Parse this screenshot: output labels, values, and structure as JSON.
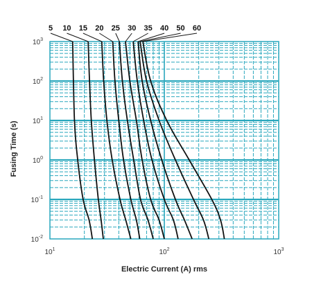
{
  "chart_data": {
    "type": "line",
    "xlabel": "Electric Current (A) rms",
    "ylabel": "Fusing Time (s)",
    "x_scale": "log",
    "y_scale": "log",
    "xlim": [
      10,
      1000
    ],
    "ylim": [
      0.01,
      1000
    ],
    "grid": true,
    "legend": "series labels along top edge with leader lines",
    "colors": {
      "grid": "#29a7bd",
      "curve": "#111111",
      "text": "#333333"
    },
    "x_ticks": [
      {
        "base": "10",
        "exp": "1"
      },
      {
        "base": "10",
        "exp": "2"
      },
      {
        "base": "10",
        "exp": "3"
      }
    ],
    "y_ticks": [
      {
        "base": "10",
        "exp": "3",
        "value": 1000
      },
      {
        "base": "10",
        "exp": "2",
        "value": 100
      },
      {
        "base": "10",
        "exp": "1",
        "value": 10
      },
      {
        "base": "10",
        "exp": "0",
        "value": 1
      },
      {
        "base": "10",
        "exp": "-1",
        "value": 0.1
      },
      {
        "base": "10",
        "exp": "-2",
        "value": 0.01
      }
    ],
    "series": [
      {
        "name": "5",
        "points": [
          [
            15.8,
            1000
          ],
          [
            16.4,
            10
          ],
          [
            17.5,
            1
          ],
          [
            19.5,
            0.1
          ],
          [
            22,
            0.03
          ],
          [
            23.5,
            0.01
          ]
        ]
      },
      {
        "name": "10",
        "points": [
          [
            21.6,
            1000
          ],
          [
            22.2,
            100
          ],
          [
            23,
            10
          ],
          [
            24.5,
            1
          ],
          [
            26.5,
            0.1
          ],
          [
            28,
            0.03
          ],
          [
            29.3,
            0.01
          ]
        ]
      },
      {
        "name": "15",
        "points": [
          [
            28.4,
            1000
          ],
          [
            29.5,
            100
          ],
          [
            31.5,
            10
          ],
          [
            35,
            1
          ],
          [
            41,
            0.1
          ],
          [
            46,
            0.03
          ],
          [
            51,
            0.01
          ]
        ]
      },
      {
        "name": "20",
        "points": [
          [
            35.4,
            1000
          ],
          [
            37,
            100
          ],
          [
            40,
            10
          ],
          [
            44,
            1
          ],
          [
            51,
            0.1
          ],
          [
            57,
            0.03
          ],
          [
            61,
            0.01
          ]
        ]
      },
      {
        "name": "25",
        "points": [
          [
            40.5,
            1000
          ],
          [
            43,
            100
          ],
          [
            47.5,
            10
          ],
          [
            54,
            1
          ],
          [
            62,
            0.1
          ],
          [
            72,
            0.03
          ],
          [
            80,
            0.01
          ]
        ]
      },
      {
        "name": "30",
        "points": [
          [
            45.8,
            1000
          ],
          [
            50,
            100
          ],
          [
            57,
            10
          ],
          [
            64,
            1
          ],
          [
            76,
            0.1
          ],
          [
            90,
            0.03
          ],
          [
            100,
            0.01
          ]
        ]
      },
      {
        "name": "35",
        "points": [
          [
            53.5,
            1000
          ],
          [
            58,
            100
          ],
          [
            66,
            10
          ],
          [
            78,
            1
          ],
          [
            100,
            0.1
          ],
          [
            120,
            0.03
          ],
          [
            132,
            0.01
          ]
        ]
      },
      {
        "name": "40",
        "points": [
          [
            59,
            1000
          ],
          [
            64,
            100
          ],
          [
            76,
            10
          ],
          [
            95,
            1
          ],
          [
            125,
            0.1
          ],
          [
            150,
            0.03
          ],
          [
            175,
            0.01
          ]
        ]
      },
      {
        "name": "50",
        "points": [
          [
            61.5,
            1000
          ],
          [
            70,
            100
          ],
          [
            90,
            10
          ],
          [
            125,
            1
          ],
          [
            180,
            0.1
          ],
          [
            220,
            0.03
          ],
          [
            245,
            0.01
          ]
        ]
      },
      {
        "name": "60",
        "points": [
          [
            65,
            1000
          ],
          [
            76,
            100
          ],
          [
            105,
            10
          ],
          [
            165,
            1
          ],
          [
            260,
            0.1
          ],
          [
            310,
            0.03
          ],
          [
            335,
            0.01
          ]
        ]
      }
    ]
  }
}
